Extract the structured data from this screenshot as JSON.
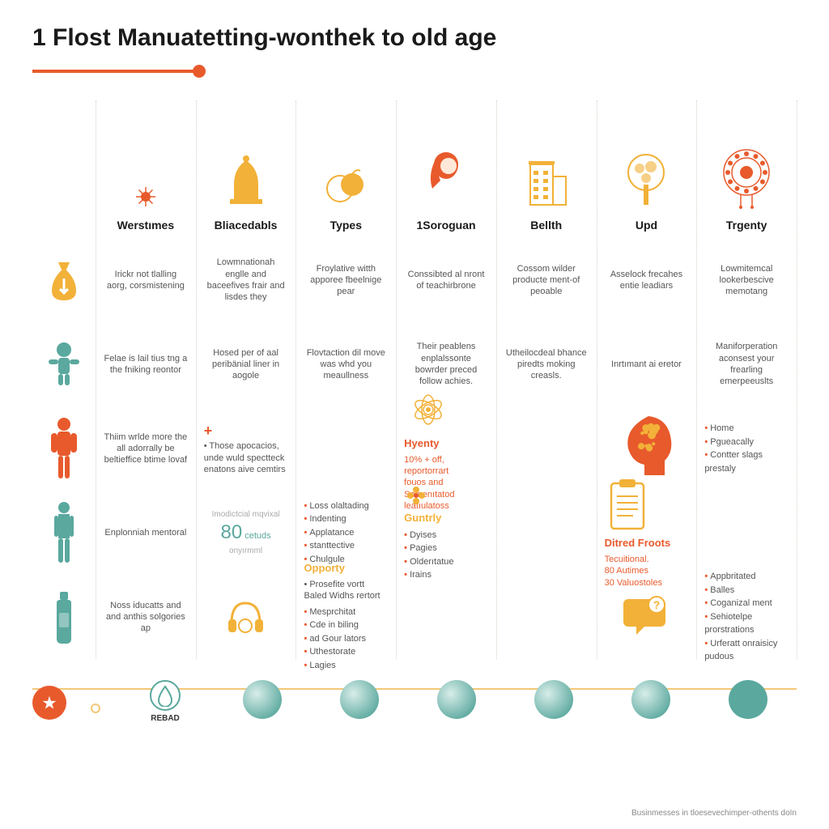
{
  "title": "1 Flost Manuatetting-wonthek to old age",
  "colors": {
    "accent_orange": "#e85a2c",
    "accent_gold": "#f2b138",
    "accent_teal": "#5aa89e",
    "text_dark": "#1a1a1a",
    "text_body": "#555555",
    "line_dotted": "#d8d2c8"
  },
  "columns": [
    {
      "label": "Werstımes",
      "icon": "sun-gold"
    },
    {
      "label": "Bliacedabls",
      "icon": "dome-gold"
    },
    {
      "label": "Types",
      "icon": "fruit-gold"
    },
    {
      "label": "1Soroguan",
      "icon": "woman-orange"
    },
    {
      "label": "Bellth",
      "icon": "building-gold"
    },
    {
      "label": "Upd",
      "icon": "tree-gold"
    },
    {
      "label": "Trgenty",
      "icon": "mandala-orange"
    }
  ],
  "left_icons": [
    {
      "name": "money-bag",
      "color": "#f2b138"
    },
    {
      "name": "child-figure",
      "color": "#5aa89e"
    },
    {
      "name": "adult-figure",
      "color": "#e85a2c"
    },
    {
      "name": "standing-figure",
      "color": "#5aa89e"
    },
    {
      "name": "bottle",
      "color": "#5aa89e"
    }
  ],
  "rows": [
    {
      "cells": [
        {
          "type": "text",
          "text": "Irickr not tlalling aorg, corsmistening"
        },
        {
          "type": "text",
          "text": "Lowmnationah englle and baceefives frair and lisdes they"
        },
        {
          "type": "text",
          "text": "Froylative witth apporee fbeelnige pear"
        },
        {
          "type": "text",
          "text": "Conssibted al nront of teachirbrone"
        },
        {
          "type": "text",
          "text": "Cossom wilder producte ment-of peoable"
        },
        {
          "type": "text",
          "text": "Asselock frecahes entie leadiars"
        },
        {
          "type": "text",
          "text": "Lowmitemcal lookerbescive memotang"
        }
      ]
    },
    {
      "cells": [
        {
          "type": "text",
          "text": "Felae is lail tius tng a the fniking reontor"
        },
        {
          "type": "text",
          "text": "Hosed per of aal peribänial liner in aogole"
        },
        {
          "type": "text",
          "text": "Flovtaction dil move was whd you meaullness"
        },
        {
          "type": "text",
          "text": "Their peablens enplalssonte bowrder preced follow achies."
        },
        {
          "type": "text",
          "text": "Utheilocdeal bhance piredts moking creasls."
        },
        {
          "type": "text",
          "text": "Inrtımant ai eretor"
        },
        {
          "type": "text",
          "text": "Maniforperation aconsest your frearling emerpeeuslts"
        }
      ]
    },
    {
      "cells": [
        {
          "type": "text",
          "text": "Thiim wrlde more the all adorrally be beltieffice btime lovaf"
        },
        {
          "type": "plus_text",
          "text": "Those apocacios, unde wuld spectteck enatons aive cemtirs"
        },
        {
          "type": "empty"
        },
        {
          "type": "highlight",
          "title": "Hyenty",
          "title_color": "#e85a2c",
          "lines": [
            "10% + off,",
            "reportorrart",
            "fouos and",
            "Somenıtatod",
            "leatıulatoss"
          ],
          "icon": "lotus-gold"
        },
        {
          "type": "empty"
        },
        {
          "type": "icon_only",
          "icon": "brain-head-orange"
        },
        {
          "type": "bullets",
          "items": [
            "Home",
            "Pgueacally",
            "Contter slags prestaly"
          ]
        }
      ]
    },
    {
      "cells": [
        {
          "type": "text",
          "text": "Enplonniah mentoral"
        },
        {
          "type": "stat",
          "label_top": "Imodictcial mqvixal",
          "value": "80",
          "value_color": "#5aa89e",
          "suffix": "cetuds onyırmml"
        },
        {
          "type": "bullets",
          "items": [
            "Loss olaltading",
            "Indenting",
            "Applatance",
            "stanttective",
            "Chulgule"
          ]
        },
        {
          "type": "highlight",
          "title": "Guntrly",
          "title_color": "#f2b138",
          "bullets": [
            "Dyises",
            "Pagies",
            "Olderıtatue",
            "Irains"
          ],
          "icon": "flower-list"
        },
        {
          "type": "empty"
        },
        {
          "type": "highlight",
          "title": "Ditred Froots",
          "title_color": "#e85a2c",
          "lines": [
            "Tecuitional.",
            "80 Autimes",
            "30 Valuostoles"
          ],
          "icon": "clipboard-gold"
        },
        {
          "type": "empty"
        }
      ]
    },
    {
      "cells": [
        {
          "type": "text",
          "text": "Noss iducatts and and anthis solgories ap"
        },
        {
          "type": "icon_only",
          "icon": "headphones-gold"
        },
        {
          "type": "bullets_titled",
          "title": "Opporty",
          "title_color": "#f2b138",
          "intro": "Prosefite vortt Baled Widhs rertort",
          "items": [
            "Mesprchitat",
            "Cde in biling",
            "ad Gour lators",
            "Uthestorate",
            "Lagies"
          ]
        },
        {
          "type": "empty"
        },
        {
          "type": "empty"
        },
        {
          "type": "icon_only",
          "icon": "chat-gold"
        },
        {
          "type": "bullets",
          "items": [
            "Appbritated",
            "Balles",
            "Coganizal ment",
            "Sehiotelpe prorstrations",
            "Urferatt onraisicy pudous"
          ]
        }
      ]
    }
  ],
  "timeline": {
    "start_icon": "star-white",
    "first_node": {
      "icon": "drop",
      "label": "REBAD"
    },
    "nodes": [
      {
        "fill": "radial-teal"
      },
      {
        "fill": "radial-teal"
      },
      {
        "fill": "radial-teal"
      },
      {
        "fill": "radial-teal"
      },
      {
        "fill": "radial-teal"
      },
      {
        "fill": "flat-teal"
      }
    ]
  },
  "footer": "Businmesses in tloesevechimper-othents doIn"
}
